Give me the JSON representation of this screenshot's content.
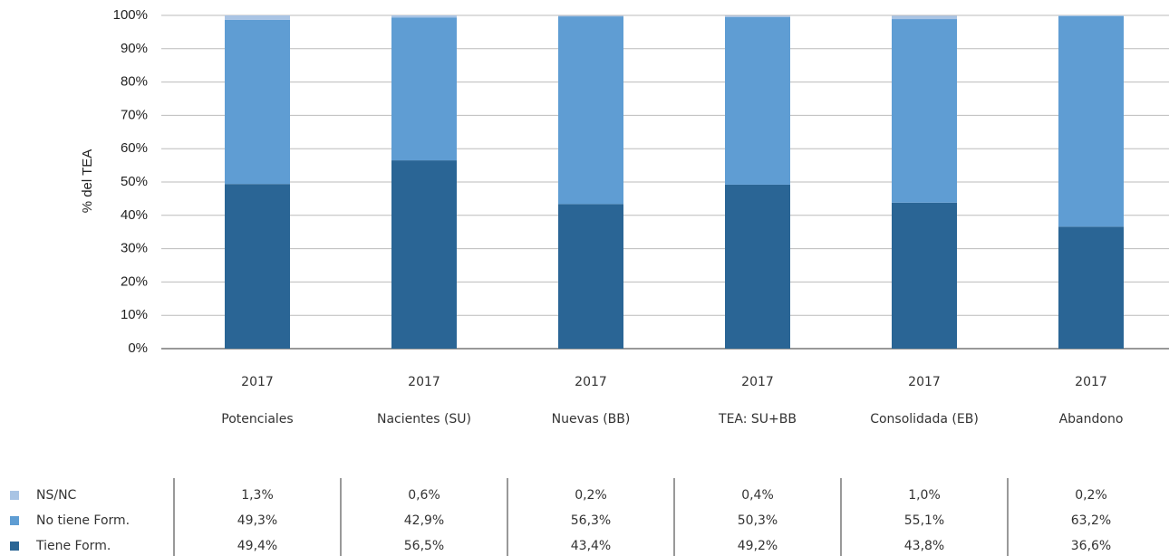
{
  "chart_data": {
    "type": "stacked_bar",
    "y_axis_label": "% del TEA",
    "category_years": [
      "2017",
      "2017",
      "2017",
      "2017",
      "2017",
      "2017"
    ],
    "categories": [
      "Potenciales",
      "Nacientes (SU)",
      "Nuevas (BB)",
      "TEA: SU+BB",
      "Consolidada (EB)",
      "Abandono"
    ],
    "series": [
      {
        "name": "NS/NC",
        "color": "#a9c4e4",
        "values": [
          1.3,
          0.6,
          0.2,
          0.4,
          1.0,
          0.2
        ],
        "value_labels": [
          "1,3%",
          "0,6%",
          "0,2%",
          "0,4%",
          "1,0%",
          "0,2%"
        ]
      },
      {
        "name": "No tiene Form.",
        "color": "#5f9dd3",
        "values": [
          49.3,
          42.9,
          56.3,
          50.3,
          55.1,
          63.2
        ],
        "value_labels": [
          "49,3%",
          "42,9%",
          "56,3%",
          "50,3%",
          "55,1%",
          "63,2%"
        ]
      },
      {
        "name": "Tiene Form.",
        "color": "#2a6595",
        "values": [
          49.4,
          56.5,
          43.4,
          49.2,
          43.8,
          36.6
        ],
        "value_labels": [
          "49,4%",
          "56,5%",
          "43,4%",
          "49,2%",
          "43,8%",
          "36,6%"
        ]
      }
    ],
    "ylim": [
      0,
      100
    ],
    "yticks": [
      {
        "value": 0,
        "label": "0%"
      },
      {
        "value": 10,
        "label": "10%"
      },
      {
        "value": 20,
        "label": "20%"
      },
      {
        "value": 30,
        "label": "30%"
      },
      {
        "value": 40,
        "label": "40%"
      },
      {
        "value": 50,
        "label": "50%"
      },
      {
        "value": 60,
        "label": "60%"
      },
      {
        "value": 70,
        "label": "70%"
      },
      {
        "value": 80,
        "label": "80%"
      },
      {
        "value": 90,
        "label": "90%"
      },
      {
        "value": 100,
        "label": "100%"
      }
    ],
    "grid": true
  }
}
